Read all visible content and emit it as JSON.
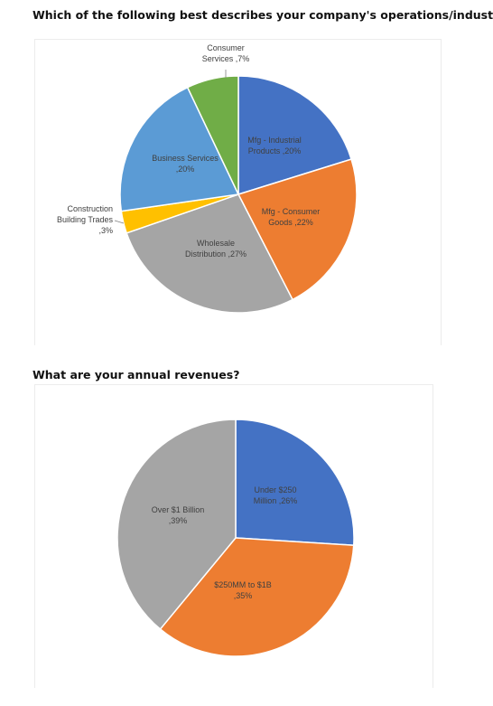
{
  "questions": {
    "q1": "Which of the following best describes your company's operations/industry?",
    "q2": "What are your annual revenues?"
  },
  "chart_data": [
    {
      "type": "pie",
      "title": "",
      "slices": [
        {
          "label_lines": [
            "Mfg - Industrial",
            "Products ,20%"
          ],
          "category": "Mfg - Industrial Products",
          "value": 20,
          "color": "#4472C4"
        },
        {
          "label_lines": [
            "Mfg - Consumer",
            "Goods ,22%"
          ],
          "category": "Mfg - Consumer Goods",
          "value": 22,
          "color": "#ED7D31"
        },
        {
          "label_lines": [
            "Wholesale",
            "Distribution ,27%"
          ],
          "category": "Wholesale Distribution",
          "value": 27,
          "color": "#A5A5A5"
        },
        {
          "label_lines": [
            "Construction",
            "Building Trades",
            ",3%"
          ],
          "category": "Construction Building Trades",
          "value": 3,
          "color": "#FFC000"
        },
        {
          "label_lines": [
            "Business Services",
            ",20%"
          ],
          "category": "Business Services",
          "value": 20,
          "color": "#5B9BD5"
        },
        {
          "label_lines": [
            "Consumer",
            "Services ,7%"
          ],
          "category": "Consumer Services",
          "value": 7,
          "color": "#70AD47"
        }
      ],
      "legend": "none",
      "start_angle": "12 o'clock, clockwise"
    },
    {
      "type": "pie",
      "title": "",
      "slices": [
        {
          "label_lines": [
            "Under $250",
            "Million ,26%"
          ],
          "category": "Under $250 Million",
          "value": 26,
          "color": "#4472C4"
        },
        {
          "label_lines": [
            "$250MM to $1B",
            ",35%"
          ],
          "category": "$250MM to $1B",
          "value": 35,
          "color": "#ED7D31"
        },
        {
          "label_lines": [
            "Over $1 Billion",
            ",39%"
          ],
          "category": "Over $1 Billion",
          "value": 39,
          "color": "#A5A5A5"
        }
      ],
      "legend": "none",
      "start_angle": "12 o'clock, clockwise"
    }
  ]
}
